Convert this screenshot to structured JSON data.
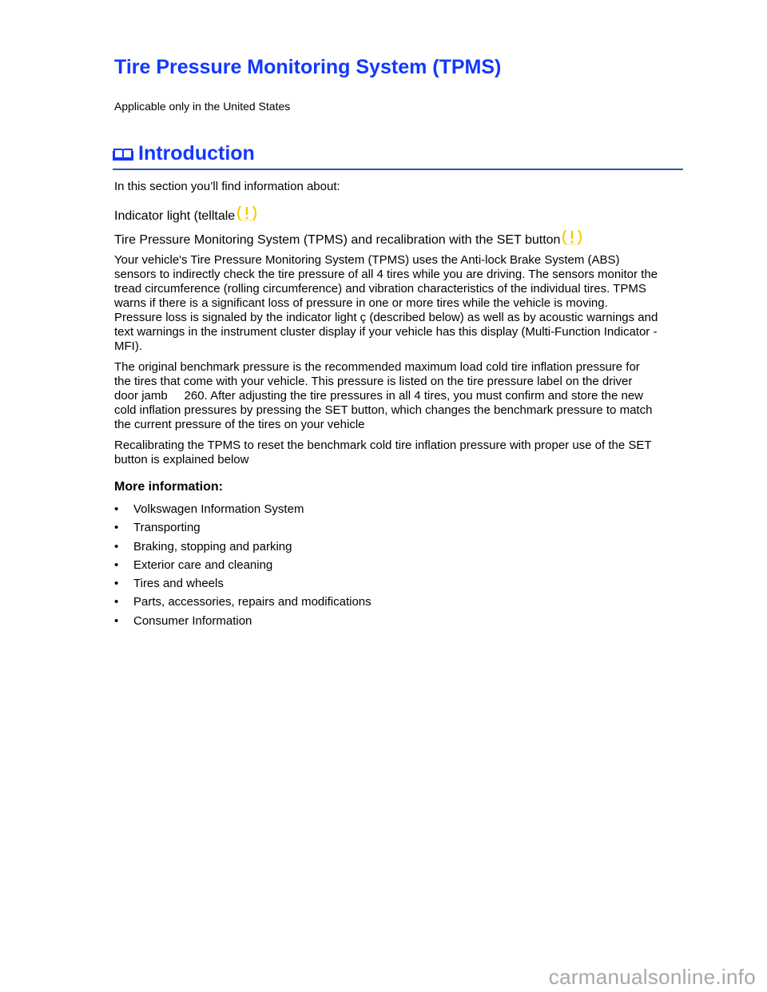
{
  "title": "Tire Pressure Monitoring System (TPMS)",
  "subtitle": "Applicable only in the United States",
  "intro": {
    "heading": "Introduction",
    "icon": "book-icon",
    "lead": "In this section you’ll find information about:",
    "topics": [
      "Indicator light (telltale",
      "Tire Pressure Monitoring System (TPMS) and recalibration with the SET button"
    ],
    "telltale_icon": "tire-pressure-warning-icon",
    "telltale_color": "#f5c800"
  },
  "paragraphs": [
    [
      "Your vehicle's Tire Pressure Monitoring System (TPMS) uses the Anti-lock Brake System (ABS)",
      "sensors to indirectly check the tire pressure of all 4 tires while you are driving. The sensors monitor the",
      "tread circumference (rolling circumference) and vibration characteristics of the individual tires. TPMS",
      "warns if there is a significant loss of pressure in one or more tires while the vehicle is moving.",
      "Pressure loss is signaled by the indicator light ç (described below) as well as by acoustic warnings and",
      "text warnings in the instrument cluster display if your vehicle has this display (Multi-Function Indicator -",
      "MFI)."
    ],
    [
      "The original benchmark pressure is the recommended maximum load cold tire inflation pressure for",
      "the tires that come with your vehicle. This pressure is listed on the tire pressure label on the driver",
      "door jamb     260. After adjusting the tire pressures in all 4 tires, you must confirm and store the new",
      "cold inflation pressures by pressing the SET button, which changes the benchmark pressure to match",
      "the current pressure of the tires on your vehicle"
    ],
    [
      "Recalibrating the TPMS to reset the benchmark cold tire inflation pressure with proper use of the SET",
      "button is explained below"
    ]
  ],
  "more": {
    "heading": "More information:",
    "items": [
      "Volkswagen Information System",
      "Transporting",
      "Braking, stopping and parking",
      "Exterior care and cleaning",
      "Tires and wheels",
      "Parts, accessories, repairs and modifications",
      "Consumer Information"
    ]
  },
  "watermark": "carmanualsonline.info",
  "colors": {
    "heading": "#1238ff",
    "rule": "#2a56b0"
  }
}
